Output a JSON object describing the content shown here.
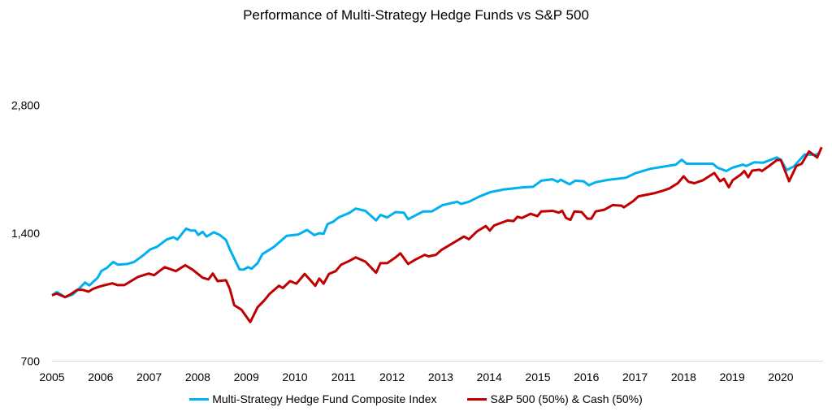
{
  "chart_data": {
    "type": "line",
    "title": "Performance of Multi-Strategy Hedge Funds vs S&P 500",
    "xlabel": "",
    "ylabel": "",
    "y_scale": "log",
    "y_ticks": [
      "700",
      "1,400",
      "2,800"
    ],
    "y_tick_values": [
      700,
      1400,
      2800
    ],
    "x_ticks": [
      "2005",
      "2006",
      "2007",
      "2008",
      "2009",
      "2010",
      "2011",
      "2012",
      "2013",
      "2014",
      "2015",
      "2016",
      "2017",
      "2018",
      "2019",
      "2020"
    ],
    "xlim": [
      2005,
      2020.85
    ],
    "ylim": [
      700,
      4200
    ],
    "grid": false,
    "legend_position": "bottom",
    "series": [
      {
        "name": "Multi-Strategy Hedge Fund Composite Index",
        "color": "#00B0F0",
        "points": [
          [
            2005.0,
            1000
          ],
          [
            2005.1,
            1018
          ],
          [
            2005.27,
            990
          ],
          [
            2005.43,
            1005
          ],
          [
            2005.57,
            1040
          ],
          [
            2005.68,
            1072
          ],
          [
            2005.77,
            1055
          ],
          [
            2005.94,
            1100
          ],
          [
            2006.02,
            1142
          ],
          [
            2006.13,
            1160
          ],
          [
            2006.26,
            1198
          ],
          [
            2006.36,
            1180
          ],
          [
            2006.55,
            1185
          ],
          [
            2006.69,
            1198
          ],
          [
            2006.89,
            1245
          ],
          [
            2007.02,
            1282
          ],
          [
            2007.16,
            1300
          ],
          [
            2007.36,
            1353
          ],
          [
            2007.5,
            1370
          ],
          [
            2007.58,
            1353
          ],
          [
            2007.76,
            1435
          ],
          [
            2007.86,
            1420
          ],
          [
            2007.95,
            1420
          ],
          [
            2008.01,
            1387
          ],
          [
            2008.1,
            1410
          ],
          [
            2008.18,
            1375
          ],
          [
            2008.33,
            1407
          ],
          [
            2008.45,
            1388
          ],
          [
            2008.58,
            1350
          ],
          [
            2008.66,
            1282
          ],
          [
            2008.86,
            1150
          ],
          [
            2008.95,
            1150
          ],
          [
            2009.03,
            1165
          ],
          [
            2009.11,
            1155
          ],
          [
            2009.23,
            1190
          ],
          [
            2009.33,
            1250
          ],
          [
            2009.57,
            1300
          ],
          [
            2009.83,
            1380
          ],
          [
            2010.07,
            1390
          ],
          [
            2010.25,
            1425
          ],
          [
            2010.4,
            1385
          ],
          [
            2010.5,
            1400
          ],
          [
            2010.59,
            1395
          ],
          [
            2010.67,
            1470
          ],
          [
            2010.79,
            1490
          ],
          [
            2010.9,
            1525
          ],
          [
            2011.12,
            1563
          ],
          [
            2011.25,
            1600
          ],
          [
            2011.45,
            1580
          ],
          [
            2011.67,
            1500
          ],
          [
            2011.76,
            1545
          ],
          [
            2011.9,
            1525
          ],
          [
            2012.07,
            1570
          ],
          [
            2012.24,
            1565
          ],
          [
            2012.33,
            1510
          ],
          [
            2012.64,
            1575
          ],
          [
            2012.82,
            1575
          ],
          [
            2013.04,
            1630
          ],
          [
            2013.34,
            1660
          ],
          [
            2013.42,
            1640
          ],
          [
            2013.58,
            1660
          ],
          [
            2013.8,
            1708
          ],
          [
            2014.03,
            1750
          ],
          [
            2014.31,
            1775
          ],
          [
            2014.71,
            1795
          ],
          [
            2014.9,
            1800
          ],
          [
            2015.07,
            1860
          ],
          [
            2015.3,
            1875
          ],
          [
            2015.41,
            1850
          ],
          [
            2015.47,
            1870
          ],
          [
            2015.65,
            1825
          ],
          [
            2015.77,
            1860
          ],
          [
            2015.94,
            1855
          ],
          [
            2016.05,
            1815
          ],
          [
            2016.19,
            1845
          ],
          [
            2016.46,
            1870
          ],
          [
            2016.81,
            1890
          ],
          [
            2017.02,
            1940
          ],
          [
            2017.32,
            1985
          ],
          [
            2017.84,
            2030
          ],
          [
            2017.96,
            2085
          ],
          [
            2018.06,
            2040
          ],
          [
            2018.6,
            2040
          ],
          [
            2018.7,
            1995
          ],
          [
            2018.88,
            1960
          ],
          [
            2019.0,
            1995
          ],
          [
            2019.22,
            2030
          ],
          [
            2019.29,
            2015
          ],
          [
            2019.45,
            2055
          ],
          [
            2019.63,
            2050
          ],
          [
            2019.92,
            2110
          ],
          [
            2020.0,
            2085
          ],
          [
            2020.12,
            1970
          ],
          [
            2020.27,
            2010
          ],
          [
            2020.49,
            2145
          ],
          [
            2020.72,
            2140
          ],
          [
            2020.79,
            2160
          ]
        ]
      },
      {
        "name": "S&P 500 (50%) & Cash (50%)",
        "color": "#C00000",
        "points": [
          [
            2005.0,
            1000
          ],
          [
            2005.1,
            1010
          ],
          [
            2005.27,
            990
          ],
          [
            2005.38,
            1005
          ],
          [
            2005.52,
            1030
          ],
          [
            2005.63,
            1030
          ],
          [
            2005.75,
            1020
          ],
          [
            2005.85,
            1036
          ],
          [
            2005.99,
            1050
          ],
          [
            2006.24,
            1067
          ],
          [
            2006.35,
            1057
          ],
          [
            2006.49,
            1057
          ],
          [
            2006.77,
            1105
          ],
          [
            2006.99,
            1125
          ],
          [
            2007.1,
            1115
          ],
          [
            2007.32,
            1165
          ],
          [
            2007.55,
            1140
          ],
          [
            2007.74,
            1177
          ],
          [
            2007.89,
            1150
          ],
          [
            2008.1,
            1100
          ],
          [
            2008.22,
            1090
          ],
          [
            2008.31,
            1125
          ],
          [
            2008.41,
            1080
          ],
          [
            2008.58,
            1085
          ],
          [
            2008.66,
            1035
          ],
          [
            2008.75,
            948
          ],
          [
            2008.9,
            925
          ],
          [
            2009.08,
            865
          ],
          [
            2009.23,
            937
          ],
          [
            2009.37,
            973
          ],
          [
            2009.48,
            1008
          ],
          [
            2009.67,
            1053
          ],
          [
            2009.75,
            1040
          ],
          [
            2009.9,
            1080
          ],
          [
            2010.03,
            1065
          ],
          [
            2010.2,
            1123
          ],
          [
            2010.42,
            1053
          ],
          [
            2010.5,
            1095
          ],
          [
            2010.59,
            1065
          ],
          [
            2010.7,
            1123
          ],
          [
            2010.84,
            1140
          ],
          [
            2010.95,
            1180
          ],
          [
            2011.12,
            1205
          ],
          [
            2011.25,
            1228
          ],
          [
            2011.45,
            1200
          ],
          [
            2011.67,
            1130
          ],
          [
            2011.76,
            1190
          ],
          [
            2011.9,
            1190
          ],
          [
            2012.07,
            1228
          ],
          [
            2012.17,
            1255
          ],
          [
            2012.33,
            1185
          ],
          [
            2012.47,
            1212
          ],
          [
            2012.67,
            1245
          ],
          [
            2012.75,
            1235
          ],
          [
            2012.9,
            1245
          ],
          [
            2013.02,
            1280
          ],
          [
            2013.34,
            1345
          ],
          [
            2013.48,
            1375
          ],
          [
            2013.58,
            1355
          ],
          [
            2013.75,
            1415
          ],
          [
            2013.93,
            1455
          ],
          [
            2014.01,
            1420
          ],
          [
            2014.1,
            1460
          ],
          [
            2014.38,
            1500
          ],
          [
            2014.5,
            1495
          ],
          [
            2014.58,
            1530
          ],
          [
            2014.67,
            1520
          ],
          [
            2014.85,
            1555
          ],
          [
            2014.99,
            1535
          ],
          [
            2015.07,
            1575
          ],
          [
            2015.31,
            1580
          ],
          [
            2015.43,
            1565
          ],
          [
            2015.5,
            1580
          ],
          [
            2015.58,
            1520
          ],
          [
            2015.67,
            1505
          ],
          [
            2015.75,
            1575
          ],
          [
            2015.9,
            1570
          ],
          [
            2016.02,
            1515
          ],
          [
            2016.1,
            1515
          ],
          [
            2016.19,
            1575
          ],
          [
            2016.37,
            1590
          ],
          [
            2016.54,
            1630
          ],
          [
            2016.72,
            1625
          ],
          [
            2016.77,
            1610
          ],
          [
            2016.96,
            1665
          ],
          [
            2017.07,
            1710
          ],
          [
            2017.41,
            1740
          ],
          [
            2017.59,
            1765
          ],
          [
            2017.71,
            1785
          ],
          [
            2017.88,
            1835
          ],
          [
            2018.0,
            1905
          ],
          [
            2018.1,
            1850
          ],
          [
            2018.22,
            1835
          ],
          [
            2018.4,
            1865
          ],
          [
            2018.63,
            1940
          ],
          [
            2018.75,
            1855
          ],
          [
            2018.83,
            1880
          ],
          [
            2018.93,
            1795
          ],
          [
            2019.01,
            1865
          ],
          [
            2019.18,
            1925
          ],
          [
            2019.25,
            1960
          ],
          [
            2019.33,
            1895
          ],
          [
            2019.41,
            1965
          ],
          [
            2019.56,
            1975
          ],
          [
            2019.61,
            1960
          ],
          [
            2019.76,
            2015
          ],
          [
            2019.92,
            2080
          ],
          [
            2020.0,
            2080
          ],
          [
            2020.17,
            1855
          ],
          [
            2020.32,
            2015
          ],
          [
            2020.43,
            2040
          ],
          [
            2020.58,
            2180
          ],
          [
            2020.75,
            2110
          ],
          [
            2020.84,
            2230
          ]
        ]
      }
    ]
  }
}
